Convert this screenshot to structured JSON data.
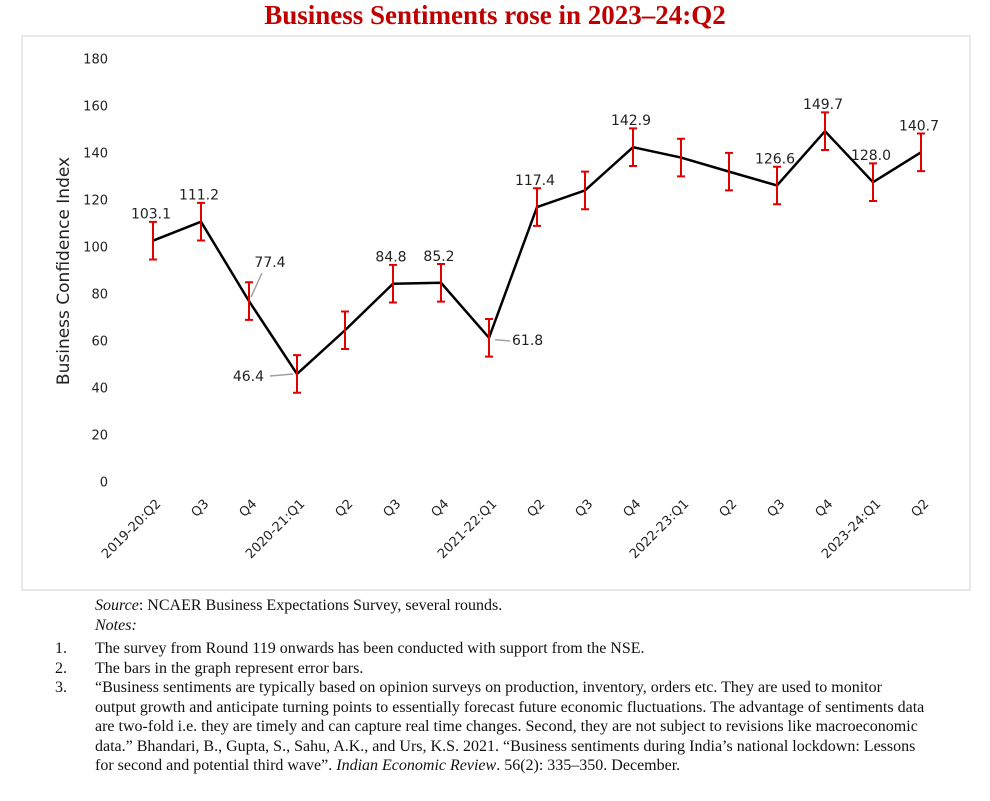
{
  "chart_data": {
    "type": "line",
    "title": "Business Sentiments rose in 2023–24:Q2",
    "y_label": "Business Confidence Index",
    "categories": [
      "2019-20:Q2",
      "Q3",
      "Q4",
      "2020-21:Q1",
      "Q2",
      "Q3",
      "Q4",
      "2021-22:Q1",
      "Q2",
      "Q3",
      "Q4",
      "2022-23:Q1",
      "Q2",
      "Q3",
      "Q4",
      "2023-24:Q1",
      "Q2"
    ],
    "values": [
      103.1,
      111.2,
      77.4,
      46.4,
      65,
      84.8,
      85.2,
      61.8,
      117.4,
      124.5,
      142.9,
      138.5,
      132.5,
      126.6,
      149.7,
      128.0,
      140.7
    ],
    "value_labels": [
      "103.1",
      "111.2",
      "77.4",
      "46.4",
      null,
      "84.8",
      "85.2",
      "61.8",
      "117.4",
      null,
      "142.9",
      null,
      null,
      "126.6",
      "149.7",
      "128.0",
      "140.7"
    ],
    "errors": [
      8,
      8,
      8,
      8,
      8,
      8,
      8,
      8,
      8,
      8,
      8,
      8,
      8,
      8,
      8,
      8,
      8
    ],
    "color": "#000000",
    "error_color": "#e00000",
    "ylim": [
      0,
      180
    ],
    "yticks": [
      0,
      20,
      40,
      60,
      80,
      100,
      120,
      140,
      160,
      180
    ]
  },
  "footer": {
    "source_label": "Source",
    "source_text": ": NCAER Business Expectations Survey, several rounds.",
    "notes_label": "Notes:",
    "notes": [
      {
        "number": "1.",
        "text": "The survey from Round 119 onwards has been conducted with support from the NSE."
      },
      {
        "number": "2.",
        "text": "The bars in the graph represent error bars."
      },
      {
        "number": "3.",
        "text": "“Business sentiments are typically based on opinion surveys on production, inventory, orders etc. They are used to monitor output growth and anticipate turning points to essentially forecast future economic fluctuations.  The advantage of sentiments data are two-fold i.e. they are timely and can capture real time changes. Second, they are not subject to revisions like macroeconomic data.” Bhandari, B., Gupta, S., Sahu, A.K., and Urs, K.S. 2021. “Business sentiments during India’s national lockdown: Lessons for second and potential third wave”. ",
        "journal": "Indian Economic Review",
        "tail": ". 56(2): 335–350. December."
      }
    ]
  }
}
